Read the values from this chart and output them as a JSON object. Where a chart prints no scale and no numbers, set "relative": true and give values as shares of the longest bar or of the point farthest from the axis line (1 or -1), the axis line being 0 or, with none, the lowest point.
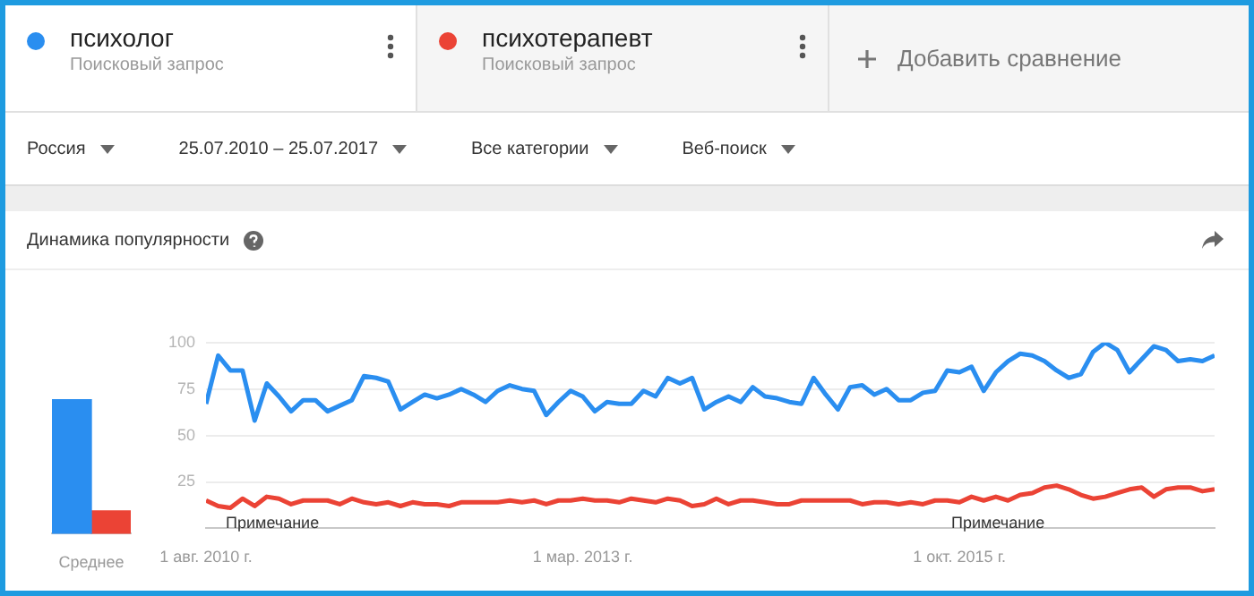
{
  "chart_data": [
    {
      "type": "bar",
      "title": "Динамика популярности",
      "categories": [
        "Среднее"
      ],
      "relative": true,
      "series": [
        {
          "color": "#2a8ef0",
          "values": [
            1
          ]
        },
        {
          "color": "#eb4335",
          "values": [
            0.17
          ]
        }
      ]
    },
    {
      "type": "line",
      "legend": "top",
      "grid": "y",
      "x": [
        "2010-08",
        "2010-09",
        "2010-10",
        "2010-11",
        "2010-12",
        "2011-01",
        "2011-02",
        "2011-03",
        "2011-04",
        "2011-05",
        "2011-06",
        "2011-07",
        "2011-08",
        "2011-09",
        "2011-10",
        "2011-11",
        "2011-12",
        "2012-01",
        "2012-02",
        "2012-03",
        "2012-04",
        "2012-05",
        "2012-06",
        "2012-07",
        "2012-08",
        "2012-09",
        "2012-10",
        "2012-11",
        "2012-12",
        "2013-01",
        "2013-02",
        "2013-03",
        "2013-04",
        "2013-05",
        "2013-06",
        "2013-07",
        "2013-08",
        "2013-09",
        "2013-10",
        "2013-11",
        "2013-12",
        "2014-01",
        "2014-02",
        "2014-03",
        "2014-04",
        "2014-05",
        "2014-06",
        "2014-07",
        "2014-08",
        "2014-09",
        "2014-10",
        "2014-11",
        "2014-12",
        "2015-01",
        "2015-02",
        "2015-03",
        "2015-04",
        "2015-05",
        "2015-06",
        "2015-07",
        "2015-08",
        "2015-09",
        "2015-10",
        "2015-11",
        "2015-12",
        "2016-01",
        "2016-02",
        "2016-03",
        "2016-04",
        "2016-05",
        "2016-06",
        "2016-07",
        "2016-08",
        "2016-09",
        "2016-10",
        "2016-11",
        "2016-12",
        "2017-01",
        "2017-02",
        "2017-03",
        "2017-04",
        "2017-05",
        "2017-06",
        "2017-07"
      ],
      "xlim": [
        "2010-08",
        "2017-07"
      ],
      "xticks": [
        {
          "value": "2010-08-01",
          "label": "1 авг. 2010 г."
        },
        {
          "value": "2013-03-01",
          "label": "1 мар. 2013 г."
        },
        {
          "value": "2015-10-01",
          "label": "1 окт. 2015 г."
        }
      ],
      "ylim": [
        0,
        100
      ],
      "yticks": [
        25,
        50,
        75,
        100
      ],
      "series": [
        {
          "name": "психолог",
          "color": "#2a8ef0",
          "values": [
            67,
            93,
            85,
            85,
            58,
            78,
            71,
            63,
            69,
            69,
            63,
            66,
            69,
            82,
            81,
            79,
            64,
            68,
            72,
            70,
            72,
            75,
            72,
            68,
            74,
            77,
            75,
            74,
            61,
            68,
            74,
            71,
            63,
            68,
            67,
            67,
            74,
            71,
            81,
            78,
            81,
            64,
            68,
            71,
            68,
            76,
            71,
            70,
            68,
            67,
            81,
            72,
            64,
            76,
            77,
            72,
            75,
            69,
            69,
            73,
            74,
            85,
            84,
            87,
            74,
            84,
            90,
            94,
            93,
            90,
            85,
            81,
            83,
            95,
            100,
            96,
            84,
            91,
            98,
            96,
            90,
            91,
            90,
            93
          ]
        },
        {
          "name": "психотерапевт",
          "color": "#eb4335",
          "values": [
            15,
            12,
            11,
            16,
            12,
            17,
            16,
            13,
            15,
            15,
            15,
            13,
            16,
            14,
            13,
            14,
            12,
            14,
            13,
            13,
            12,
            14,
            14,
            14,
            14,
            15,
            14,
            15,
            13,
            15,
            15,
            16,
            15,
            15,
            14,
            16,
            15,
            14,
            16,
            15,
            12,
            13,
            16,
            13,
            15,
            15,
            14,
            13,
            13,
            15,
            15,
            15,
            15,
            15,
            13,
            14,
            14,
            13,
            14,
            13,
            15,
            15,
            14,
            17,
            15,
            17,
            15,
            18,
            19,
            22,
            23,
            21,
            18,
            16,
            17,
            19,
            21,
            22,
            17,
            21,
            22,
            22,
            20,
            21
          ]
        }
      ],
      "annotations": [
        "Поисковый запрос",
        "Поисковый запрос",
        "Добавить сравнение",
        "Россия",
        "25.07.2010 – 25.07.2017",
        "Все категории",
        "Веб-поиск",
        "Примечание",
        "Примечание"
      ]
    }
  ]
}
